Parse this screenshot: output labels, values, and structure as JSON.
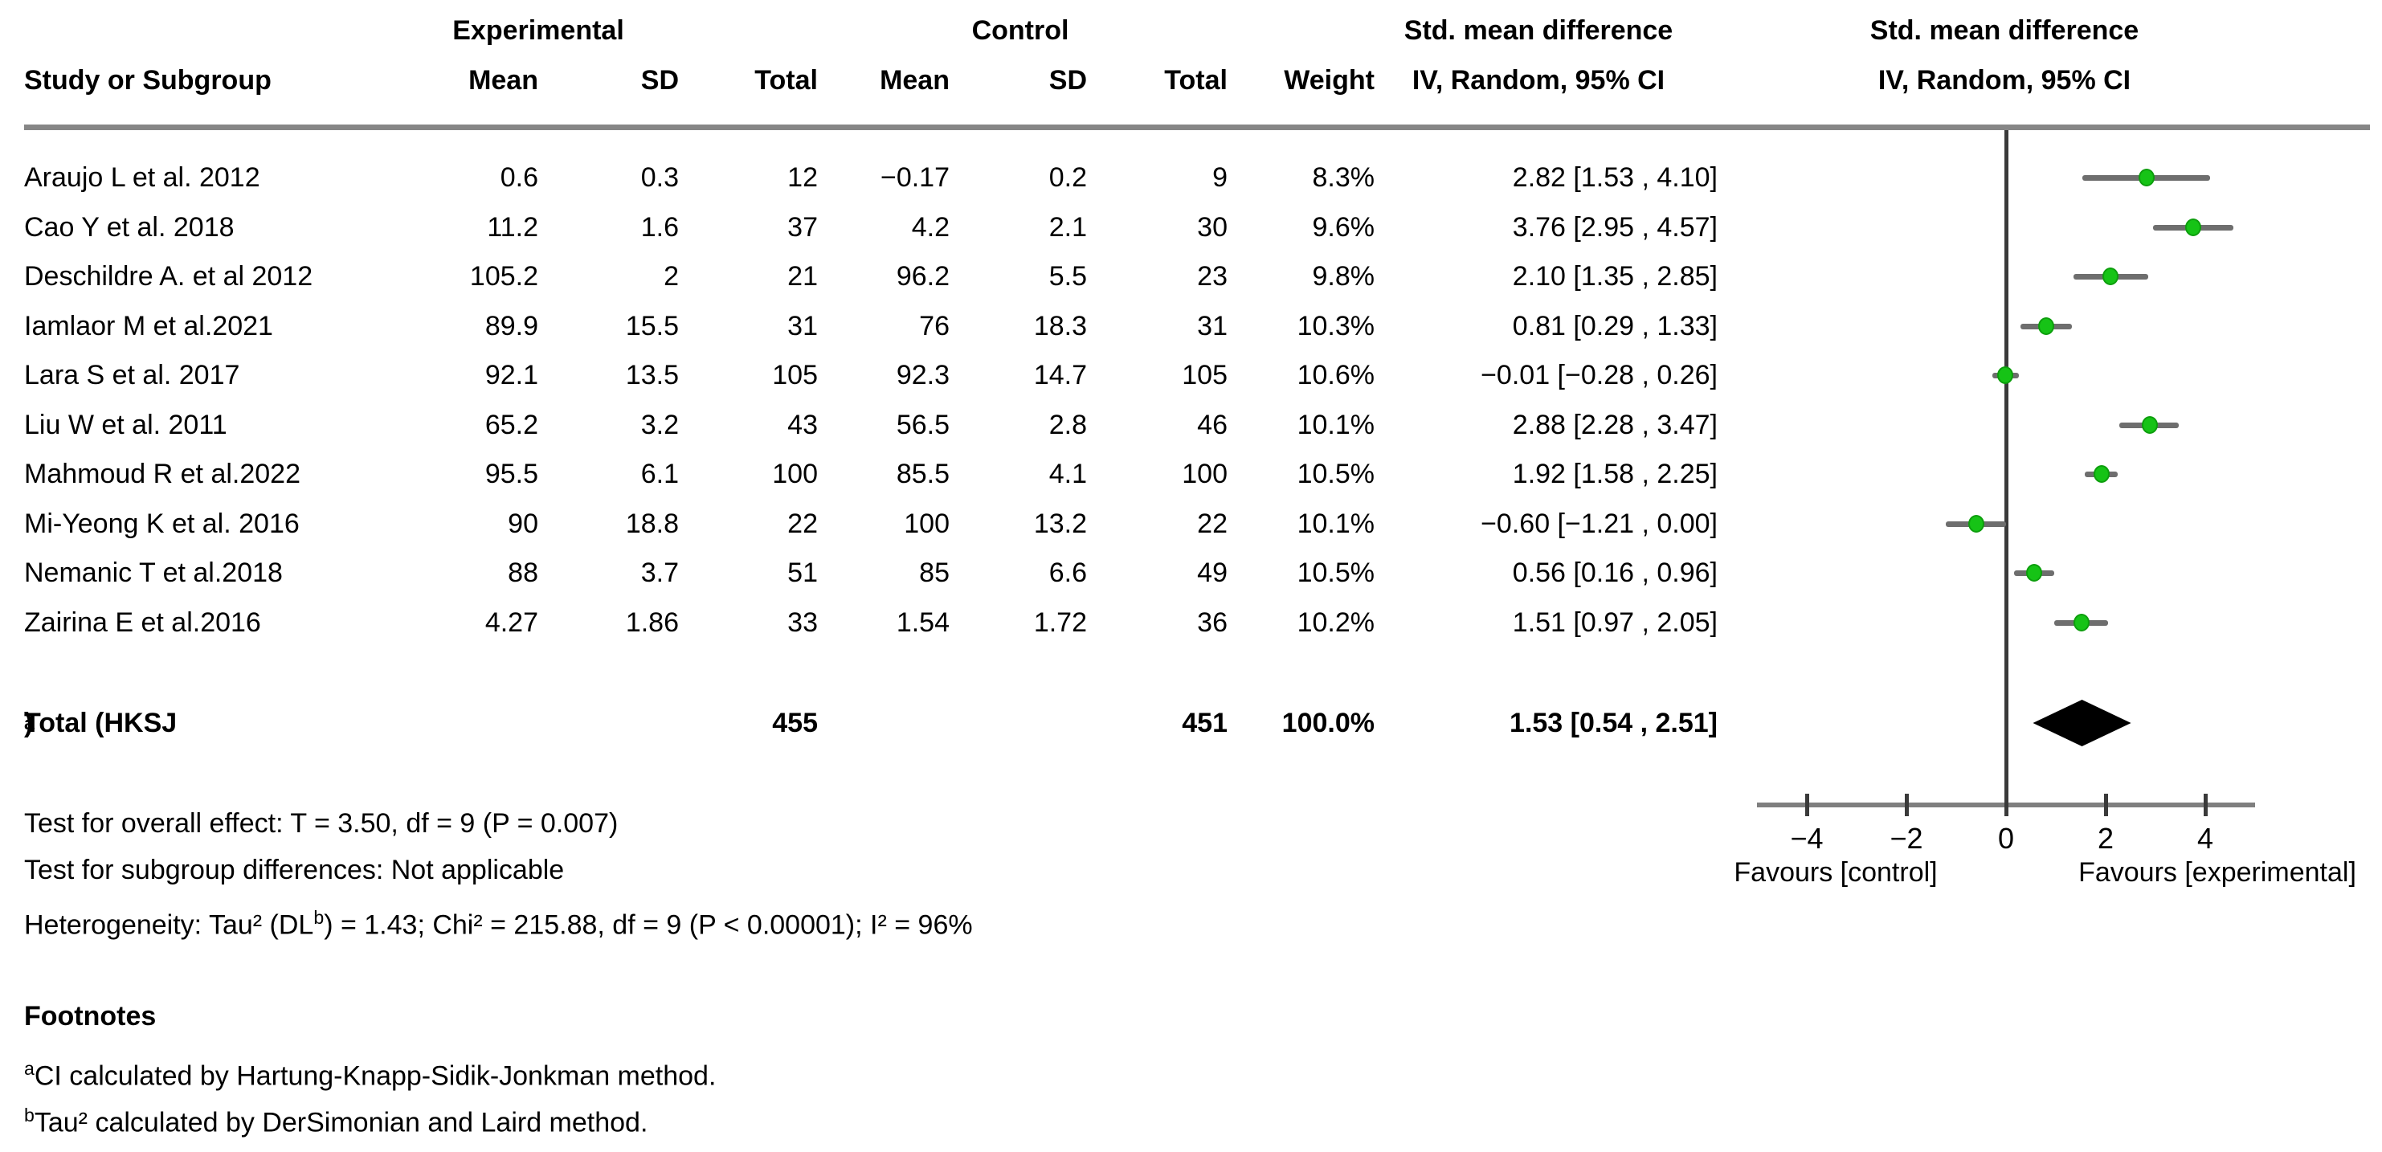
{
  "header": {
    "experimental": "Experimental",
    "control": "Control",
    "study_or_subgroup": "Study or Subgroup",
    "mean": "Mean",
    "sd": "SD",
    "total": "Total",
    "weight": "Weight",
    "smd_line1": "Std. mean difference",
    "smd_line2": "IV, Random, 95% CI"
  },
  "chart_data": {
    "type": "scatter",
    "subtype": "forest_plot",
    "title": "Std. mean difference IV, Random, 95% CI",
    "xlim": [
      -5,
      5
    ],
    "xticks": [
      {
        "value": -4,
        "label": "−4"
      },
      {
        "value": -2,
        "label": "−2"
      },
      {
        "value": 0,
        "label": "0"
      },
      {
        "value": 2,
        "label": "2"
      },
      {
        "value": 4,
        "label": "4"
      }
    ],
    "favours_left": "Favours [control]",
    "favours_right": "Favours [experimental]",
    "marker_color": "#16c316",
    "ci_line_color": "#6e6e6e",
    "diamond_color": "#000000",
    "studies": [
      {
        "name": "Araujo L et al. 2012",
        "exp_mean": "0.6",
        "exp_sd": "0.3",
        "exp_total": "12",
        "ctl_mean": "−0.17",
        "ctl_sd": "0.2",
        "ctl_total": "9",
        "weight": "8.3%",
        "ci_text": "2.82 [1.53 , 4.10]",
        "est": 2.82,
        "lo": 1.53,
        "hi": 4.1
      },
      {
        "name": "Cao Y et al. 2018",
        "exp_mean": "11.2",
        "exp_sd": "1.6",
        "exp_total": "37",
        "ctl_mean": "4.2",
        "ctl_sd": "2.1",
        "ctl_total": "30",
        "weight": "9.6%",
        "ci_text": "3.76 [2.95 , 4.57]",
        "est": 3.76,
        "lo": 2.95,
        "hi": 4.57
      },
      {
        "name": "Deschildre A. et al 2012",
        "exp_mean": "105.2",
        "exp_sd": "2",
        "exp_total": "21",
        "ctl_mean": "96.2",
        "ctl_sd": "5.5",
        "ctl_total": "23",
        "weight": "9.8%",
        "ci_text": "2.10 [1.35 , 2.85]",
        "est": 2.1,
        "lo": 1.35,
        "hi": 2.85
      },
      {
        "name": "Iamlaor M et al.2021",
        "exp_mean": "89.9",
        "exp_sd": "15.5",
        "exp_total": "31",
        "ctl_mean": "76",
        "ctl_sd": "18.3",
        "ctl_total": "31",
        "weight": "10.3%",
        "ci_text": "0.81 [0.29 , 1.33]",
        "est": 0.81,
        "lo": 0.29,
        "hi": 1.33
      },
      {
        "name": "Lara S et al. 2017",
        "exp_mean": "92.1",
        "exp_sd": "13.5",
        "exp_total": "105",
        "ctl_mean": "92.3",
        "ctl_sd": "14.7",
        "ctl_total": "105",
        "weight": "10.6%",
        "ci_text": "−0.01 [−0.28 , 0.26]",
        "est": -0.01,
        "lo": -0.28,
        "hi": 0.26
      },
      {
        "name": "Liu W et al. 2011",
        "exp_mean": "65.2",
        "exp_sd": "3.2",
        "exp_total": "43",
        "ctl_mean": "56.5",
        "ctl_sd": "2.8",
        "ctl_total": "46",
        "weight": "10.1%",
        "ci_text": "2.88 [2.28 , 3.47]",
        "est": 2.88,
        "lo": 2.28,
        "hi": 3.47
      },
      {
        "name": "Mahmoud R et al.2022",
        "exp_mean": "95.5",
        "exp_sd": "6.1",
        "exp_total": "100",
        "ctl_mean": "85.5",
        "ctl_sd": "4.1",
        "ctl_total": "100",
        "weight": "10.5%",
        "ci_text": "1.92 [1.58 , 2.25]",
        "est": 1.92,
        "lo": 1.58,
        "hi": 2.25
      },
      {
        "name": "Mi-Yeong K et al. 2016",
        "exp_mean": "90",
        "exp_sd": "18.8",
        "exp_total": "22",
        "ctl_mean": "100",
        "ctl_sd": "13.2",
        "ctl_total": "22",
        "weight": "10.1%",
        "ci_text": "−0.60 [−1.21 , 0.00]",
        "est": -0.6,
        "lo": -1.21,
        "hi": 0.0
      },
      {
        "name": "Nemanic T et al.2018",
        "exp_mean": "88",
        "exp_sd": "3.7",
        "exp_total": "51",
        "ctl_mean": "85",
        "ctl_sd": "6.6",
        "ctl_total": "49",
        "weight": "10.5%",
        "ci_text": "0.56 [0.16 , 0.96]",
        "est": 0.56,
        "lo": 0.16,
        "hi": 0.96
      },
      {
        "name": "Zairina E et al.2016",
        "exp_mean": "4.27",
        "exp_sd": "1.86",
        "exp_total": "33",
        "ctl_mean": "1.54",
        "ctl_sd": "1.72",
        "ctl_total": "36",
        "weight": "10.2%",
        "ci_text": "1.51 [0.97 , 2.05]",
        "est": 1.51,
        "lo": 0.97,
        "hi": 2.05
      }
    ]
  },
  "total_row": {
    "label_prefix": "Total (HKSJ",
    "label_sup": "a",
    "label_suffix": ")",
    "exp_total": "455",
    "ctl_total": "451",
    "weight": "100.0%",
    "ci_text": "1.53 [0.54 , 2.51]",
    "est": 1.53,
    "lo": 0.54,
    "hi": 2.51
  },
  "stats": {
    "overall_effect": "Test for overall effect: T = 3.50, df = 9 (P = 0.007)",
    "subgroup": "Test for subgroup differences: Not applicable",
    "het_prefix": "Heterogeneity: Tau² (DL",
    "het_sup": "b",
    "het_suffix": ") = 1.43; Chi² = 215.88, df = 9 (P < 0.00001); I² = 96%"
  },
  "footnotes": {
    "heading": "Footnotes",
    "items": [
      {
        "sup": "a",
        "text": "CI calculated by Hartung-Knapp-Sidik-Jonkman method."
      },
      {
        "sup": "b",
        "text": "Tau² calculated by DerSimonian and Laird method."
      }
    ]
  }
}
